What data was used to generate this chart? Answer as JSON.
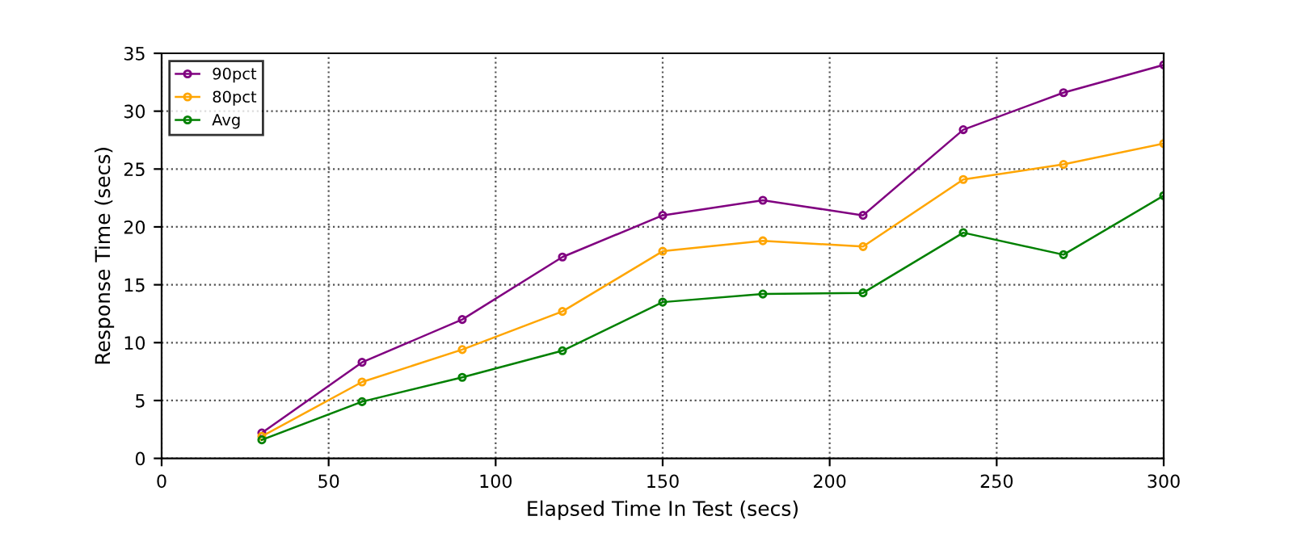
{
  "chart_data": {
    "type": "line",
    "xlabel": "Elapsed Time In Test (secs)",
    "ylabel": "Response Time (secs)",
    "x": [
      30,
      60,
      90,
      120,
      150,
      180,
      210,
      240,
      270,
      300
    ],
    "series": [
      {
        "name": "90pct",
        "color": "#800080",
        "values": [
          2.2,
          8.3,
          12.0,
          17.4,
          21.0,
          22.3,
          21.0,
          28.4,
          31.6,
          34.0
        ]
      },
      {
        "name": "80pct",
        "color": "#ffa500",
        "values": [
          1.9,
          6.6,
          9.4,
          12.7,
          17.9,
          18.8,
          18.3,
          24.1,
          25.4,
          27.2
        ]
      },
      {
        "name": "Avg",
        "color": "#008000",
        "values": [
          1.6,
          4.9,
          7.0,
          9.3,
          13.5,
          14.2,
          14.3,
          19.5,
          17.6,
          22.7
        ]
      }
    ],
    "xlim": [
      0,
      300
    ],
    "xticks": [
      0,
      50,
      100,
      150,
      200,
      250,
      300
    ],
    "ylim": [
      0,
      35
    ],
    "yticks": [
      0,
      5,
      10,
      15,
      20,
      25,
      30,
      35
    ],
    "grid": true,
    "legend": "top left",
    "marker": "circle",
    "line_style": "solid"
  }
}
